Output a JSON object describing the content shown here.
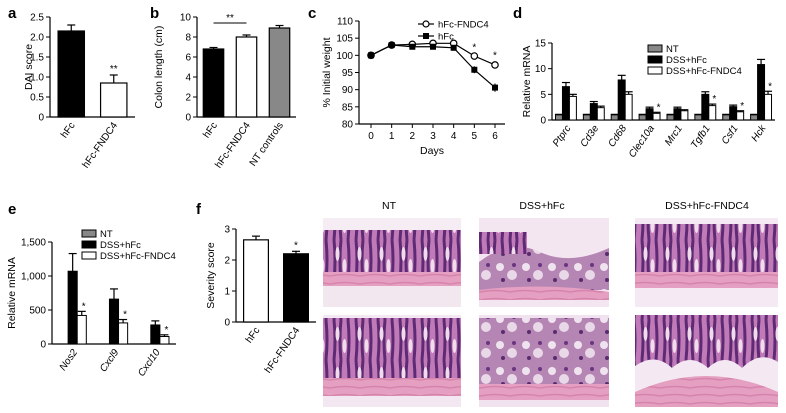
{
  "panel_labels": [
    "a",
    "b",
    "c",
    "d",
    "e",
    "f"
  ],
  "histology": {
    "columns": [
      "NT",
      "DSS+hFc",
      "DSS+hFc-FNDC4"
    ]
  },
  "chart_data": [
    {
      "id": "a",
      "type": "bar",
      "categories": [
        "hFc",
        "hFc-FNDC4"
      ],
      "values": [
        2.15,
        0.85
      ],
      "errors": [
        0.15,
        0.2
      ],
      "fills": [
        "#000000",
        "#ffffff"
      ],
      "ylabel": "DAI score",
      "ylim": [
        0,
        2.5
      ],
      "yticks": [
        0,
        0.5,
        1.0,
        1.5,
        2.0,
        2.5
      ],
      "ytick_labels": [
        "0",
        "0.5",
        "1.0",
        "1.5",
        "2.0",
        "2.5"
      ],
      "annotations": [
        {
          "category": "hFc-FNDC4",
          "text": "**"
        }
      ]
    },
    {
      "id": "b",
      "type": "bar",
      "categories": [
        "hFc",
        "hFc-FNDC4",
        "NT controls"
      ],
      "values": [
        6.8,
        8.0,
        8.9
      ],
      "errors": [
        0.15,
        0.2,
        0.25
      ],
      "fills": [
        "#000000",
        "#ffffff",
        "#888888"
      ],
      "ylabel": "Colon length (cm)",
      "ylim": [
        0,
        10
      ],
      "yticks": [
        0,
        2,
        4,
        6,
        8,
        10
      ],
      "ytick_labels": [
        "0",
        "2",
        "4",
        "6",
        "8",
        "10"
      ],
      "annotations": [
        {
          "bracket": [
            "hFc",
            "hFc-FNDC4"
          ],
          "text": "**"
        }
      ]
    },
    {
      "id": "c",
      "type": "line",
      "x": [
        0,
        1,
        2,
        3,
        4,
        5,
        6
      ],
      "series": [
        {
          "name": "hFc-FNDC4",
          "marker": "open-circle",
          "values": [
            100,
            103,
            103.2,
            103.5,
            103.5,
            99.8,
            97.2
          ],
          "errors": [
            0.3,
            0.4,
            0.4,
            0.5,
            0.6,
            0.8,
            1.0
          ]
        },
        {
          "name": "hFc",
          "marker": "filled-square",
          "values": [
            100,
            103,
            102.5,
            102.5,
            102.2,
            95.8,
            90.6
          ],
          "errors": [
            0.3,
            0.4,
            0.5,
            0.5,
            0.6,
            1.0,
            1.2
          ]
        }
      ],
      "xlabel": "Days",
      "ylabel": "% Initial weight",
      "ylim": [
        80,
        110
      ],
      "yticks": [
        80,
        85,
        90,
        95,
        100,
        105,
        110
      ],
      "ytick_labels": [
        "80",
        "85",
        "90",
        "95",
        "100",
        "105",
        "110"
      ],
      "xtick_labels": [
        "0",
        "1",
        "2",
        "3",
        "4",
        "5",
        "6"
      ],
      "legend": "top-right",
      "annotations": [
        {
          "x": 5,
          "text": "*"
        },
        {
          "x": 6,
          "text": "*"
        }
      ]
    },
    {
      "id": "d",
      "type": "bar",
      "categories": [
        "Ptprc",
        "Cd3e",
        "Cd68",
        "Clec10a",
        "Mrc1",
        "Tgfb1",
        "Csf1",
        "Hck"
      ],
      "series": [
        {
          "name": "NT",
          "fill": "#888888",
          "values": [
            1,
            1,
            1,
            1,
            1,
            1,
            1,
            1
          ],
          "errors": [
            0.1,
            0.1,
            0.1,
            0.1,
            0.1,
            0.1,
            0.1,
            0.1
          ]
        },
        {
          "name": "DSS+hFc",
          "fill": "#000000",
          "values": [
            6.5,
            3.2,
            7.8,
            2.2,
            2.2,
            5.0,
            2.6,
            10.8
          ],
          "errors": [
            0.8,
            0.4,
            0.9,
            0.3,
            0.3,
            0.5,
            0.3,
            1.0
          ]
        },
        {
          "name": "DSS+hFc-FNDC4",
          "fill": "#ffffff",
          "values": [
            4.6,
            2.4,
            5.0,
            1.3,
            1.8,
            2.8,
            1.6,
            5.0
          ],
          "errors": [
            0.4,
            0.3,
            0.5,
            0.2,
            0.2,
            0.3,
            0.2,
            0.6
          ]
        }
      ],
      "ylabel": "Relative mRNA",
      "ylim": [
        0,
        15
      ],
      "yticks": [
        0,
        5,
        10,
        15
      ],
      "ytick_labels": [
        "0",
        "5",
        "10",
        "15"
      ],
      "legend": "top-right",
      "annotations": [
        {
          "category": "Clec10a",
          "text": "*"
        },
        {
          "category": "Tgfb1",
          "text": "*"
        },
        {
          "category": "Csf1",
          "text": "*"
        },
        {
          "category": "Hck",
          "text": "*"
        }
      ]
    },
    {
      "id": "e",
      "type": "bar",
      "categories": [
        "Nos2",
        "Cxcl9",
        "Cxcl10"
      ],
      "series": [
        {
          "name": "NT",
          "fill": "#888888",
          "values": [
            0,
            0,
            0
          ],
          "errors": [
            0,
            0,
            0
          ]
        },
        {
          "name": "DSS+hFc",
          "fill": "#000000",
          "values": [
            1070,
            660,
            280
          ],
          "errors": [
            260,
            150,
            60
          ]
        },
        {
          "name": "DSS+hFc-FNDC4",
          "fill": "#ffffff",
          "values": [
            420,
            310,
            110
          ],
          "errors": [
            60,
            50,
            25
          ]
        }
      ],
      "ylabel": "Relative mRNA",
      "ylim": [
        0,
        1500
      ],
      "yticks": [
        0,
        500,
        1000,
        1500
      ],
      "ytick_labels": [
        "0",
        "500",
        "1,000",
        "1,500"
      ],
      "legend": "top-right",
      "annotations": [
        {
          "category": "Nos2",
          "text": "*"
        },
        {
          "category": "Cxcl9",
          "text": "*"
        },
        {
          "category": "Cxcl10",
          "text": "*"
        }
      ]
    },
    {
      "id": "f",
      "type": "bar",
      "categories": [
        "hFc",
        "hFc-FNDC4"
      ],
      "values": [
        2.65,
        2.2
      ],
      "errors": [
        0.12,
        0.08
      ],
      "fills": [
        "#ffffff",
        "#000000"
      ],
      "ylabel": "Severity score",
      "ylim": [
        0,
        3
      ],
      "yticks": [
        0,
        1,
        2,
        3
      ],
      "ytick_labels": [
        "0",
        "1",
        "2",
        "3"
      ],
      "annotations": [
        {
          "category": "hFc-FNDC4",
          "text": "*"
        }
      ]
    }
  ]
}
